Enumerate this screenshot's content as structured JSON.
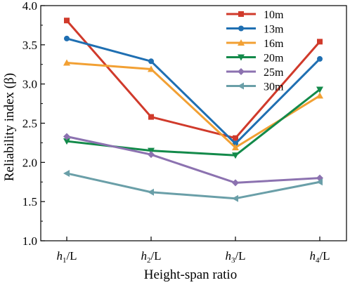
{
  "chart_data": {
    "type": "line",
    "title": "",
    "xlabel": "Height-span ratio",
    "ylabel": "Reliability index (β)",
    "categories": [
      {
        "sym": "h",
        "sub": "1",
        "tail": "/L"
      },
      {
        "sym": "h",
        "sub": "2",
        "tail": "/L"
      },
      {
        "sym": "h",
        "sub": "3",
        "tail": "/L"
      },
      {
        "sym": "h",
        "sub": "4",
        "tail": "/L"
      }
    ],
    "ylim": [
      1.0,
      4.0
    ],
    "yticks": [
      "1.0",
      "1.5",
      "2.0",
      "2.5",
      "3.0",
      "3.5",
      "4.0"
    ],
    "grid": false,
    "legend_position": "top-right",
    "series": [
      {
        "name": "10m",
        "color": "#d03a2b",
        "marker": "square",
        "values": [
          3.81,
          2.58,
          2.31,
          3.54
        ]
      },
      {
        "name": "13m",
        "color": "#1f6fb2",
        "marker": "circle",
        "values": [
          3.58,
          3.29,
          2.24,
          3.32
        ]
      },
      {
        "name": "16m",
        "color": "#f2a033",
        "marker": "triangle-up",
        "values": [
          3.27,
          3.19,
          2.19,
          2.85
        ]
      },
      {
        "name": "20m",
        "color": "#138a4a",
        "marker": "triangle-down",
        "values": [
          2.27,
          2.15,
          2.09,
          2.93
        ]
      },
      {
        "name": "25m",
        "color": "#8c72b0",
        "marker": "diamond",
        "values": [
          2.33,
          2.1,
          1.74,
          1.8
        ]
      },
      {
        "name": "30m",
        "color": "#6a9fa8",
        "marker": "triangle-left",
        "values": [
          1.86,
          1.62,
          1.54,
          1.75
        ]
      }
    ]
  }
}
